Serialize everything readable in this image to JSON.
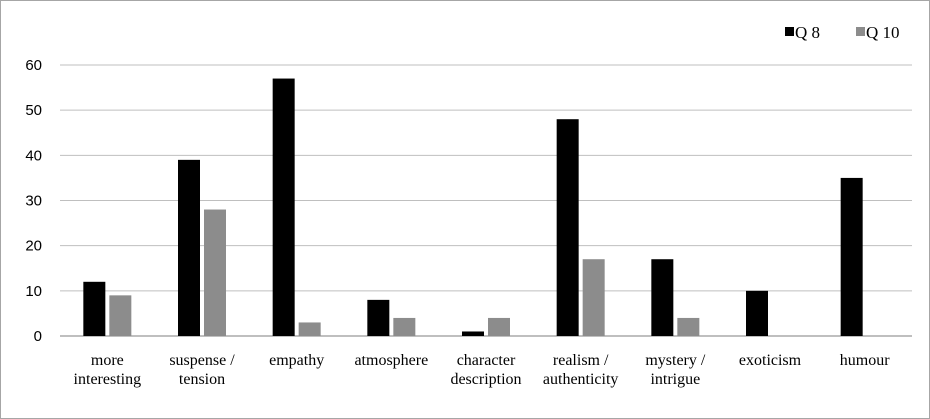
{
  "chart_data": {
    "type": "bar",
    "categories": [
      [
        "more",
        "interesting"
      ],
      [
        "suspense /",
        "tension"
      ],
      [
        "empathy"
      ],
      [
        "atmosphere"
      ],
      [
        "character",
        "description"
      ],
      [
        "realism /",
        "authenticity"
      ],
      [
        "mystery /",
        "intrigue"
      ],
      [
        "exoticism"
      ],
      [
        "humour"
      ]
    ],
    "series": [
      {
        "name": "Q 8",
        "color": "#000000",
        "values": [
          12,
          39,
          57,
          8,
          1,
          48,
          17,
          10,
          35
        ]
      },
      {
        "name": "Q 10",
        "color": "#8c8c8c",
        "values": [
          9,
          28,
          3,
          4,
          4,
          17,
          4,
          0,
          0
        ]
      }
    ],
    "ylim": [
      0,
      60
    ],
    "yticks": [
      0,
      10,
      20,
      30,
      40,
      50,
      60
    ],
    "grid": true,
    "legend_position": "top-right",
    "title": "",
    "xlabel": "",
    "ylabel": ""
  }
}
